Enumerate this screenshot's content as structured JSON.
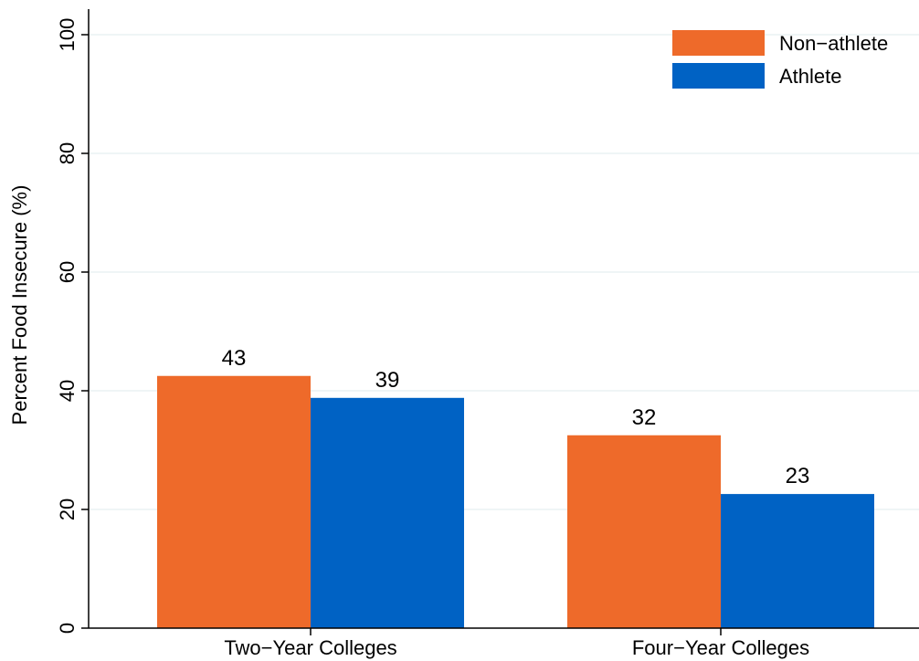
{
  "chart_data": {
    "type": "bar",
    "title": "",
    "xlabel": "",
    "ylabel": "Percent Food Insecure (%)",
    "ylim": [
      0,
      100
    ],
    "yticks": [
      0,
      20,
      40,
      60,
      80,
      100
    ],
    "grid": true,
    "legend_position": "top-right",
    "categories": [
      "Two−Year Colleges",
      "Four−Year Colleges"
    ],
    "series": [
      {
        "name": "Non−athlete",
        "color": "#ee6a2a",
        "values": [
          42.5,
          32.5
        ],
        "labels": [
          "43",
          "32"
        ]
      },
      {
        "name": "Athlete",
        "color": "#0062c4",
        "values": [
          38.8,
          22.6
        ],
        "labels": [
          "39",
          "23"
        ]
      }
    ]
  }
}
